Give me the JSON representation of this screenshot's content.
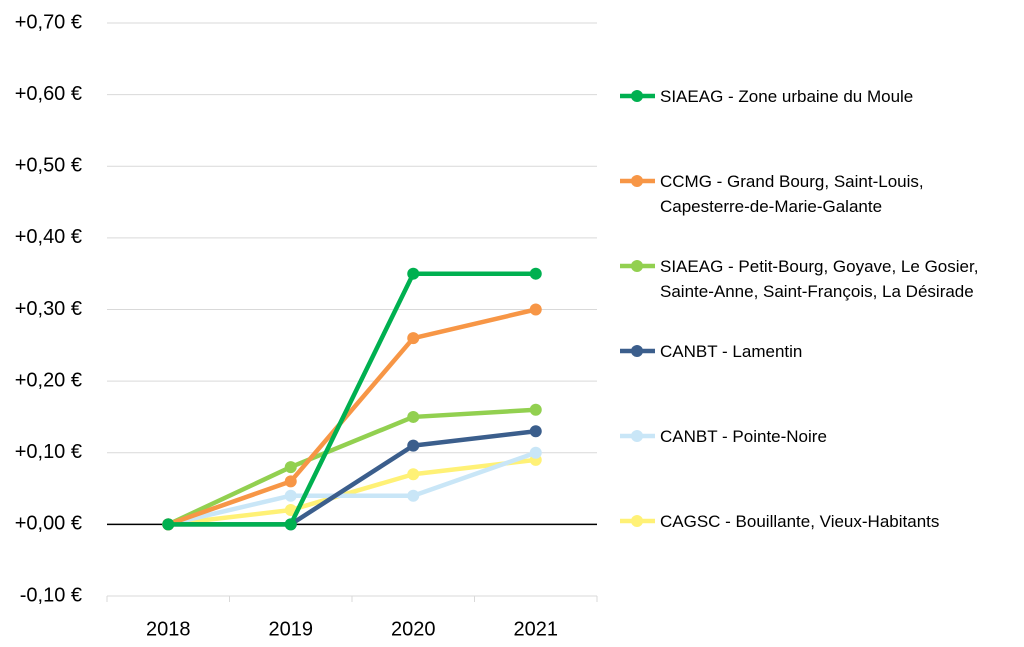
{
  "chart_data": {
    "type": "line",
    "categories": [
      "2018",
      "2019",
      "2020",
      "2021"
    ],
    "series": [
      {
        "name": "SIAEAG - Zone urbaine du Moule",
        "color": "#00b050",
        "values": [
          0,
          0,
          0.35,
          0.35
        ]
      },
      {
        "name": "CCMG - Grand Bourg, Saint-Louis, Capesterre-de-Marie-Galante",
        "color": "#f79646",
        "values": [
          0,
          0.06,
          0.26,
          0.3
        ]
      },
      {
        "name": "SIAEAG - Petit-Bourg, Goyave, Le Gosier, Sainte-Anne, Saint-François, La Désirade",
        "color": "#92d050",
        "values": [
          0,
          0.08,
          0.15,
          0.16
        ]
      },
      {
        "name": "CANBT - Lamentin",
        "color": "#3b5e8c",
        "values": [
          0,
          0,
          0.11,
          0.13
        ]
      },
      {
        "name": "CANBT - Pointe-Noire",
        "color": "#c9e6f7",
        "values": [
          0,
          0.04,
          0.04,
          0.1
        ]
      },
      {
        "name": "CAGSC - Bouillante, Vieux-Habitants",
        "color": "#fff176",
        "values": [
          0,
          0.02,
          0.07,
          0.09
        ]
      }
    ],
    "ylim": [
      -0.1,
      0.7
    ],
    "yticks": [
      {
        "value": -0.1,
        "label": "-0,10 €"
      },
      {
        "value": 0,
        "label": "+0,00 €"
      },
      {
        "value": 0.1,
        "label": "+0,10 €"
      },
      {
        "value": 0.2,
        "label": "+0,20 €"
      },
      {
        "value": 0.3,
        "label": "+0,30 €"
      },
      {
        "value": 0.4,
        "label": "+0,40 €"
      },
      {
        "value": 0.5,
        "label": "+0,50 €"
      },
      {
        "value": 0.6,
        "label": "+0,60 €"
      },
      {
        "value": 0.7,
        "label": "+0,70 €"
      }
    ],
    "grid": true,
    "legend": "right"
  }
}
